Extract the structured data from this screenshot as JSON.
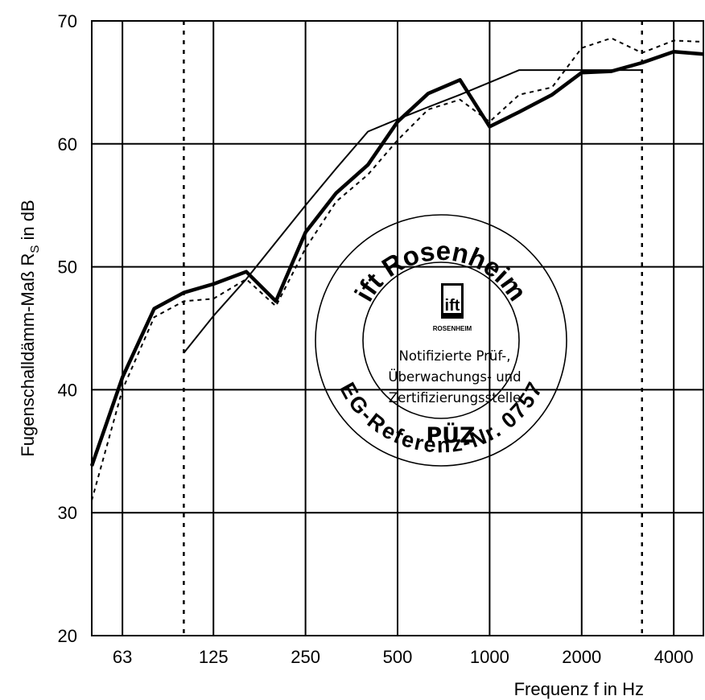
{
  "chart_data": {
    "type": "line",
    "xlabel": "Frequenz f in Hz",
    "ylabel": "Fugenschalldämm-Maß R",
    "ylabel_sub": "S",
    "ylabel_suffix": " in dB",
    "ylim": [
      20,
      70
    ],
    "yticks": [
      "20",
      "30",
      "40",
      "50",
      "60",
      "70"
    ],
    "x_scale": "log",
    "xlim": [
      50,
      5000
    ],
    "xticks": [
      {
        "label": "63",
        "value": 63
      },
      {
        "label": "125",
        "value": 125
      },
      {
        "label": "250",
        "value": 250
      },
      {
        "label": "500",
        "value": 500
      },
      {
        "label": "1000",
        "value": 1000
      },
      {
        "label": "2000",
        "value": 2000
      },
      {
        "label": "4000",
        "value": 4000
      }
    ],
    "grid": true,
    "vertical_gridlines": [
      {
        "value": 63,
        "style": "solid"
      },
      {
        "value": 100,
        "style": "dotted"
      },
      {
        "value": 125,
        "style": "solid"
      },
      {
        "value": 250,
        "style": "solid"
      },
      {
        "value": 500,
        "style": "solid"
      },
      {
        "value": 1000,
        "style": "solid"
      },
      {
        "value": 2000,
        "style": "solid"
      },
      {
        "value": 3150,
        "style": "dotted"
      },
      {
        "value": 4000,
        "style": "solid"
      }
    ],
    "series": [
      {
        "style": "thick",
        "x": [
          50,
          63,
          80,
          100,
          125,
          160,
          200,
          250,
          315,
          400,
          500,
          630,
          800,
          1000,
          1250,
          1600,
          2000,
          2500,
          3150,
          4000,
          5000
        ],
        "y": [
          33.8,
          41.0,
          46.6,
          47.9,
          48.6,
          49.6,
          47.2,
          52.8,
          56.0,
          58.3,
          61.8,
          64.1,
          65.2,
          61.4,
          62.6,
          64.0,
          65.8,
          65.9,
          66.6,
          67.5,
          67.3
        ]
      },
      {
        "style": "dotted",
        "x": [
          50,
          63,
          80,
          100,
          125,
          160,
          200,
          250,
          315,
          400,
          500,
          630,
          800,
          1000,
          1250,
          1600,
          2000,
          2500,
          3150,
          4000,
          5000
        ],
        "y": [
          31.0,
          40.0,
          45.9,
          47.2,
          47.4,
          49.0,
          46.8,
          51.5,
          55.3,
          57.5,
          60.3,
          62.8,
          63.6,
          61.8,
          64.0,
          64.6,
          67.8,
          68.6,
          67.4,
          68.4,
          68.3
        ]
      },
      {
        "style": "thin",
        "x": [
          100,
          125,
          160,
          200,
          250,
          315,
          400,
          500,
          630,
          800,
          1000,
          1250,
          1600,
          2000,
          2500,
          3150
        ],
        "y": [
          43,
          46,
          49,
          52,
          55,
          58,
          61,
          62,
          63,
          64,
          65,
          66,
          66,
          66,
          66,
          66
        ]
      }
    ]
  },
  "stamp": {
    "title": "ift Rosenheim",
    "logo_text": "ift",
    "logo_caption": "ROSENHEIM",
    "lines": [
      "Notifizierte Prüf-,",
      "Überwachungs- und",
      "Zertifizierungsstelle"
    ],
    "abbr": "PÜZ",
    "reference": "EG-Referenz-Nr. 0757"
  }
}
